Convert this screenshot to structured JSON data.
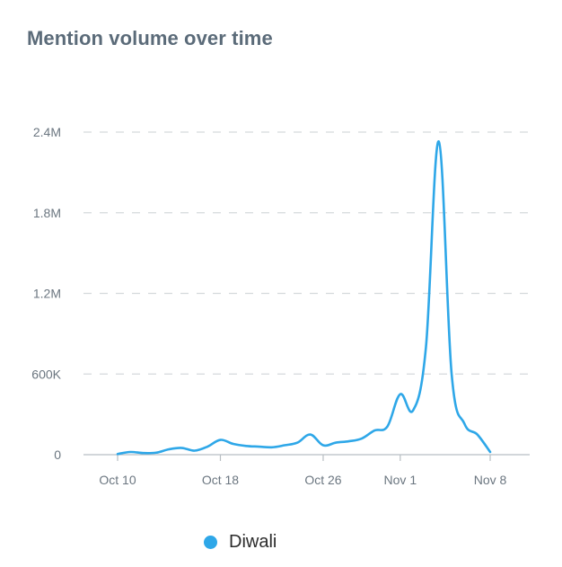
{
  "title": "Mention volume over time",
  "accent_color": "#2ea7e8",
  "chart_data": {
    "type": "line",
    "title": "Mention volume over time",
    "xlabel": "",
    "ylabel": "",
    "x_start": "Oct 10",
    "x_ticks": [
      {
        "label": "Oct 10",
        "day": 0
      },
      {
        "label": "Oct 18",
        "day": 8
      },
      {
        "label": "Oct 26",
        "day": 16
      },
      {
        "label": "Nov 1",
        "day": 22
      },
      {
        "label": "Nov 8",
        "day": 29
      }
    ],
    "y_ticks": [
      {
        "label": "0",
        "value": 0
      },
      {
        "label": "600K",
        "value": 600000
      },
      {
        "label": "1.2M",
        "value": 1200000
      },
      {
        "label": "1.8M",
        "value": 1800000
      },
      {
        "label": "2.4M",
        "value": 2400000
      }
    ],
    "ylim": [
      0,
      2400000
    ],
    "grid": true,
    "legend_position": "bottom",
    "series": [
      {
        "name": "Diwali",
        "color": "#2ea7e8",
        "points": [
          {
            "day": 0,
            "value": 5000
          },
          {
            "day": 1,
            "value": 20000
          },
          {
            "day": 2,
            "value": 12000
          },
          {
            "day": 3,
            "value": 15000
          },
          {
            "day": 4,
            "value": 40000
          },
          {
            "day": 5,
            "value": 50000
          },
          {
            "day": 6,
            "value": 30000
          },
          {
            "day": 7,
            "value": 60000
          },
          {
            "day": 8,
            "value": 110000
          },
          {
            "day": 9,
            "value": 80000
          },
          {
            "day": 10,
            "value": 65000
          },
          {
            "day": 11,
            "value": 60000
          },
          {
            "day": 12,
            "value": 55000
          },
          {
            "day": 13,
            "value": 70000
          },
          {
            "day": 14,
            "value": 90000
          },
          {
            "day": 15,
            "value": 150000
          },
          {
            "day": 16,
            "value": 70000
          },
          {
            "day": 17,
            "value": 90000
          },
          {
            "day": 18,
            "value": 100000
          },
          {
            "day": 19,
            "value": 120000
          },
          {
            "day": 20,
            "value": 180000
          },
          {
            "day": 21,
            "value": 210000
          },
          {
            "day": 22,
            "value": 450000
          },
          {
            "day": 23,
            "value": 330000
          },
          {
            "day": 24,
            "value": 800000
          },
          {
            "day": 25,
            "value": 2330000
          },
          {
            "day": 26,
            "value": 600000
          },
          {
            "day": 27,
            "value": 230000
          },
          {
            "day": 28,
            "value": 150000
          },
          {
            "day": 29,
            "value": 20000
          }
        ]
      }
    ]
  }
}
